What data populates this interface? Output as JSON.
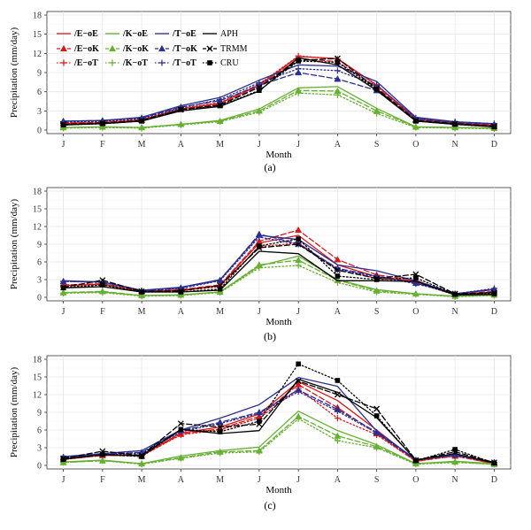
{
  "colors": {
    "E": "#d7191c",
    "K": "#66b032",
    "T": "#2b2f8f",
    "APH": "#000000",
    "TRMM": "#000000",
    "CRU": "#000000"
  },
  "legend": [
    {
      "label": "/E−oE",
      "group": "E",
      "style": "solid",
      "marker": "none",
      "bold": true
    },
    {
      "label": "/E−oK",
      "group": "E",
      "style": "dash",
      "marker": "triangle",
      "bold": true
    },
    {
      "label": "/E−oT",
      "group": "E",
      "style": "dot",
      "marker": "plus",
      "bold": true
    },
    {
      "label": "/K−oE",
      "group": "K",
      "style": "solid",
      "marker": "none",
      "bold": true
    },
    {
      "label": "/K−oK",
      "group": "K",
      "style": "dash",
      "marker": "triangle",
      "bold": true
    },
    {
      "label": "/K−oT",
      "group": "K",
      "style": "dot",
      "marker": "plus",
      "bold": true
    },
    {
      "label": "/T−oE",
      "group": "T",
      "style": "solid",
      "marker": "none",
      "bold": true
    },
    {
      "label": "/T−oK",
      "group": "T",
      "style": "dash",
      "marker": "triangle",
      "bold": true
    },
    {
      "label": "/T−oT",
      "group": "T",
      "style": "dot",
      "marker": "plus",
      "bold": true
    },
    {
      "label": "APH",
      "group": "APH",
      "style": "solid",
      "marker": "none",
      "bold": false
    },
    {
      "label": "TRMM",
      "group": "TRMM",
      "style": "dash",
      "marker": "x",
      "bold": false
    },
    {
      "label": "CRU",
      "group": "CRU",
      "style": "dot",
      "marker": "square",
      "bold": false
    }
  ],
  "chart_data": [
    {
      "type": "line",
      "panel_label": "(a)",
      "xlabel": "Month",
      "ylabel": "Precipitation (mm/day)",
      "categories": [
        "J",
        "F",
        "M",
        "A",
        "M",
        "J",
        "J",
        "A",
        "S",
        "O",
        "N",
        "D"
      ],
      "ylim": [
        0,
        18
      ],
      "yticks": [
        0,
        3,
        6,
        9,
        12,
        15,
        18
      ],
      "grid": true,
      "series": [
        {
          "name": "/E−oE",
          "values": [
            1.0,
            1.1,
            1.6,
            3.3,
            4.2,
            7.0,
            11.5,
            11.2,
            7.0,
            1.7,
            1.1,
            0.7
          ]
        },
        {
          "name": "/E−oK",
          "values": [
            1.1,
            1.2,
            1.6,
            3.3,
            4.0,
            6.8,
            11.2,
            10.7,
            6.7,
            1.6,
            1.0,
            0.6
          ]
        },
        {
          "name": "/E−oT",
          "values": [
            1.2,
            1.3,
            1.7,
            3.4,
            4.3,
            7.2,
            11.6,
            11.1,
            7.1,
            1.8,
            1.2,
            0.8
          ]
        },
        {
          "name": "/K−oE",
          "values": [
            0.4,
            0.5,
            0.4,
            0.9,
            1.5,
            3.3,
            6.6,
            6.8,
            3.4,
            0.5,
            0.4,
            0.3
          ]
        },
        {
          "name": "/K−oK",
          "values": [
            0.4,
            0.5,
            0.4,
            0.9,
            1.4,
            3.0,
            6.2,
            6.1,
            3.0,
            0.5,
            0.4,
            0.3
          ]
        },
        {
          "name": "/K−oT",
          "values": [
            0.3,
            0.4,
            0.3,
            0.8,
            1.3,
            2.8,
            5.8,
            5.5,
            2.6,
            0.4,
            0.3,
            0.2
          ]
        },
        {
          "name": "/T−oE",
          "values": [
            1.4,
            1.5,
            2.0,
            3.8,
            5.1,
            7.8,
            10.2,
            10.0,
            7.6,
            2.0,
            1.3,
            1.0
          ]
        },
        {
          "name": "/T−oK",
          "values": [
            1.4,
            1.5,
            1.9,
            3.6,
            4.6,
            7.0,
            9.0,
            8.0,
            6.2,
            1.7,
            1.2,
            0.9
          ]
        },
        {
          "name": "/T−oT",
          "values": [
            1.3,
            1.4,
            1.8,
            3.5,
            4.8,
            7.4,
            9.6,
            9.3,
            7.0,
            1.9,
            1.3,
            1.0
          ]
        },
        {
          "name": "APH",
          "values": [
            0.8,
            1.0,
            1.4,
            3.0,
            3.7,
            6.1,
            11.3,
            10.2,
            6.2,
            1.4,
            0.9,
            0.5
          ]
        },
        {
          "name": "TRMM",
          "values": [
            0.9,
            1.1,
            1.5,
            3.2,
            3.9,
            6.7,
            10.9,
            11.2,
            6.5,
            1.5,
            1.0,
            0.6
          ]
        },
        {
          "name": "CRU",
          "values": [
            0.8,
            1.0,
            1.4,
            3.2,
            3.8,
            6.2,
            10.8,
            10.6,
            6.4,
            1.4,
            0.9,
            0.5
          ]
        }
      ]
    },
    {
      "type": "line",
      "panel_label": "(b)",
      "xlabel": "Month",
      "ylabel": "Precipitation (mm/day)",
      "categories": [
        "J",
        "F",
        "M",
        "A",
        "M",
        "J",
        "J",
        "A",
        "S",
        "O",
        "N",
        "D"
      ],
      "ylim": [
        0,
        18
      ],
      "yticks": [
        0,
        3,
        6,
        9,
        12,
        15,
        18
      ],
      "grid": true,
      "series": [
        {
          "name": "/E−oE",
          "values": [
            2.0,
            2.2,
            1.0,
            1.2,
            2.0,
            9.2,
            10.5,
            5.5,
            3.5,
            2.7,
            0.5,
            0.9
          ]
        },
        {
          "name": "/E−oK",
          "values": [
            2.1,
            2.3,
            1.0,
            1.3,
            2.1,
            9.5,
            11.4,
            6.4,
            3.8,
            2.9,
            0.5,
            1.0
          ]
        },
        {
          "name": "/E−oT",
          "values": [
            1.9,
            2.1,
            0.9,
            1.1,
            1.8,
            8.6,
            9.2,
            4.8,
            3.2,
            2.5,
            0.4,
            0.8
          ]
        },
        {
          "name": "/K−oE",
          "values": [
            0.8,
            0.9,
            0.3,
            0.4,
            0.9,
            5.3,
            7.0,
            3.0,
            1.3,
            0.6,
            0.2,
            0.4
          ]
        },
        {
          "name": "/K−oK",
          "values": [
            0.8,
            1.0,
            0.3,
            0.4,
            0.9,
            5.5,
            6.3,
            2.9,
            1.1,
            0.6,
            0.2,
            0.4
          ]
        },
        {
          "name": "/K−oT",
          "values": [
            0.7,
            0.8,
            0.2,
            0.3,
            0.8,
            5.0,
            5.4,
            2.5,
            0.9,
            0.5,
            0.1,
            0.3
          ]
        },
        {
          "name": "/T−oE",
          "values": [
            2.8,
            2.6,
            1.2,
            1.7,
            3.0,
            10.5,
            9.8,
            5.5,
            4.5,
            2.8,
            0.6,
            1.3
          ]
        },
        {
          "name": "/T−oK",
          "values": [
            2.7,
            2.6,
            1.1,
            1.6,
            2.9,
            10.7,
            9.1,
            4.9,
            3.6,
            2.4,
            0.6,
            1.4
          ]
        },
        {
          "name": "/T−oT",
          "values": [
            2.7,
            2.5,
            1.1,
            1.5,
            2.8,
            10.2,
            9.0,
            4.7,
            3.5,
            2.3,
            0.6,
            1.5
          ]
        },
        {
          "name": "APH",
          "values": [
            1.6,
            1.8,
            0.9,
            0.9,
            1.2,
            7.8,
            7.4,
            2.8,
            2.8,
            2.7,
            0.4,
            0.5
          ]
        },
        {
          "name": "TRMM",
          "values": [
            1.7,
            2.9,
            1.0,
            1.1,
            2.0,
            8.4,
            9.0,
            4.6,
            3.2,
            3.9,
            0.6,
            0.8
          ]
        },
        {
          "name": "CRU",
          "values": [
            1.6,
            2.1,
            0.9,
            0.9,
            1.4,
            8.7,
            9.9,
            3.6,
            3.0,
            3.3,
            0.5,
            0.6
          ]
        }
      ]
    },
    {
      "type": "line",
      "panel_label": "(c)",
      "xlabel": "Month",
      "ylabel": "Precipitation (mm/day)",
      "categories": [
        "J",
        "F",
        "M",
        "A",
        "M",
        "J",
        "J",
        "A",
        "S",
        "O",
        "N",
        "D"
      ],
      "ylim": [
        0,
        18
      ],
      "yticks": [
        0,
        3,
        6,
        9,
        12,
        15,
        18
      ],
      "grid": true,
      "series": [
        {
          "name": "/E−oE",
          "values": [
            1.1,
            1.8,
            1.7,
            5.5,
            6.5,
            8.7,
            14.2,
            11.0,
            6.0,
            0.8,
            1.8,
            0.4
          ]
        },
        {
          "name": "/E−oK",
          "values": [
            1.0,
            1.7,
            1.6,
            5.3,
            6.2,
            8.3,
            13.7,
            9.8,
            5.4,
            0.7,
            1.6,
            0.3
          ]
        },
        {
          "name": "/E−oT",
          "values": [
            1.0,
            1.7,
            1.6,
            5.2,
            6.0,
            8.0,
            13.0,
            8.0,
            5.2,
            0.7,
            1.6,
            0.3
          ]
        },
        {
          "name": "/K−oE",
          "values": [
            0.6,
            0.9,
            0.3,
            1.6,
            2.5,
            3.1,
            9.2,
            5.9,
            3.5,
            0.3,
            0.7,
            0.3
          ]
        },
        {
          "name": "/K−oK",
          "values": [
            0.5,
            0.8,
            0.3,
            1.3,
            2.3,
            2.5,
            8.3,
            5.0,
            3.2,
            0.3,
            0.6,
            0.2
          ]
        },
        {
          "name": "/K−oT",
          "values": [
            0.5,
            0.8,
            0.2,
            1.2,
            2.1,
            2.3,
            7.9,
            4.2,
            3.0,
            0.2,
            0.5,
            0.2
          ]
        },
        {
          "name": "/T−oE",
          "values": [
            1.5,
            2.0,
            2.5,
            6.0,
            8.0,
            10.3,
            14.9,
            13.4,
            5.8,
            1.0,
            1.8,
            0.5
          ]
        },
        {
          "name": "/T−oK",
          "values": [
            1.4,
            1.9,
            2.2,
            5.9,
            7.3,
            9.0,
            12.8,
            9.5,
            5.6,
            0.9,
            1.8,
            0.5
          ]
        },
        {
          "name": "/T−oT",
          "values": [
            1.4,
            1.8,
            2.1,
            5.7,
            7.1,
            8.8,
            12.5,
            9.2,
            5.5,
            0.9,
            1.7,
            0.5
          ]
        },
        {
          "name": "APH",
          "values": [
            1.1,
            1.8,
            1.7,
            6.1,
            5.4,
            5.9,
            14.6,
            12.4,
            8.1,
            0.9,
            2.0,
            0.4
          ]
        },
        {
          "name": "TRMM",
          "values": [
            1.2,
            2.4,
            1.7,
            7.1,
            6.5,
            7.0,
            14.3,
            12.0,
            9.6,
            0.9,
            2.3,
            0.5
          ]
        },
        {
          "name": "CRU",
          "values": [
            1.0,
            1.9,
            1.5,
            6.1,
            5.7,
            7.5,
            17.2,
            14.4,
            8.4,
            0.8,
            2.7,
            0.4
          ]
        }
      ]
    }
  ]
}
